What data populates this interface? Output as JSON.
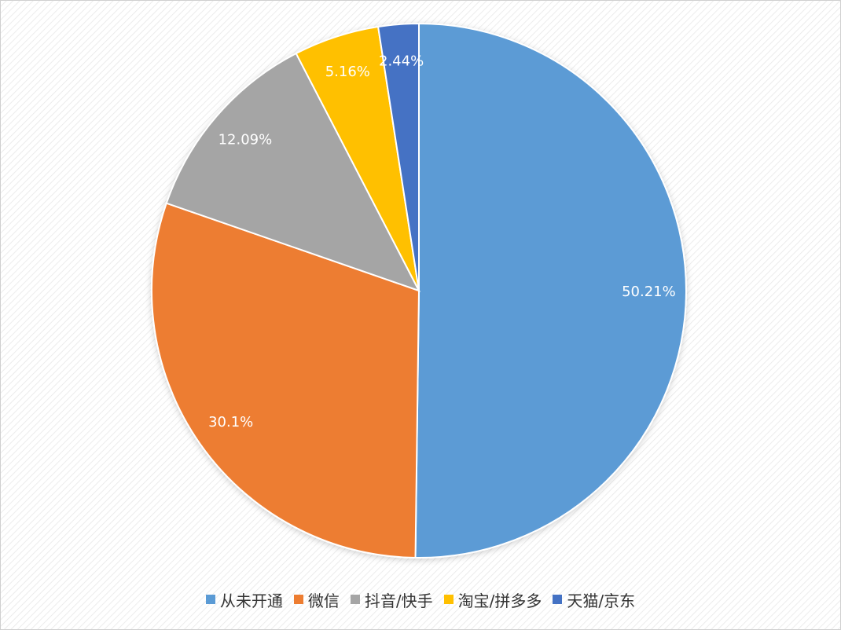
{
  "chart_data": {
    "type": "pie",
    "categories": [
      "从未开通",
      "微信",
      "抖音/快手",
      "淘宝/拼多多",
      "天猫/京东"
    ],
    "values": [
      50.21,
      30.1,
      12.09,
      5.16,
      2.44
    ],
    "value_labels": [
      "50.21%",
      "30.1%",
      "12.09%",
      "5.16%",
      "2.44%"
    ],
    "colors": [
      "#5b9bd5",
      "#ed7d31",
      "#a5a5a5",
      "#ffc000",
      "#4472c4"
    ],
    "legend": "bottom"
  }
}
